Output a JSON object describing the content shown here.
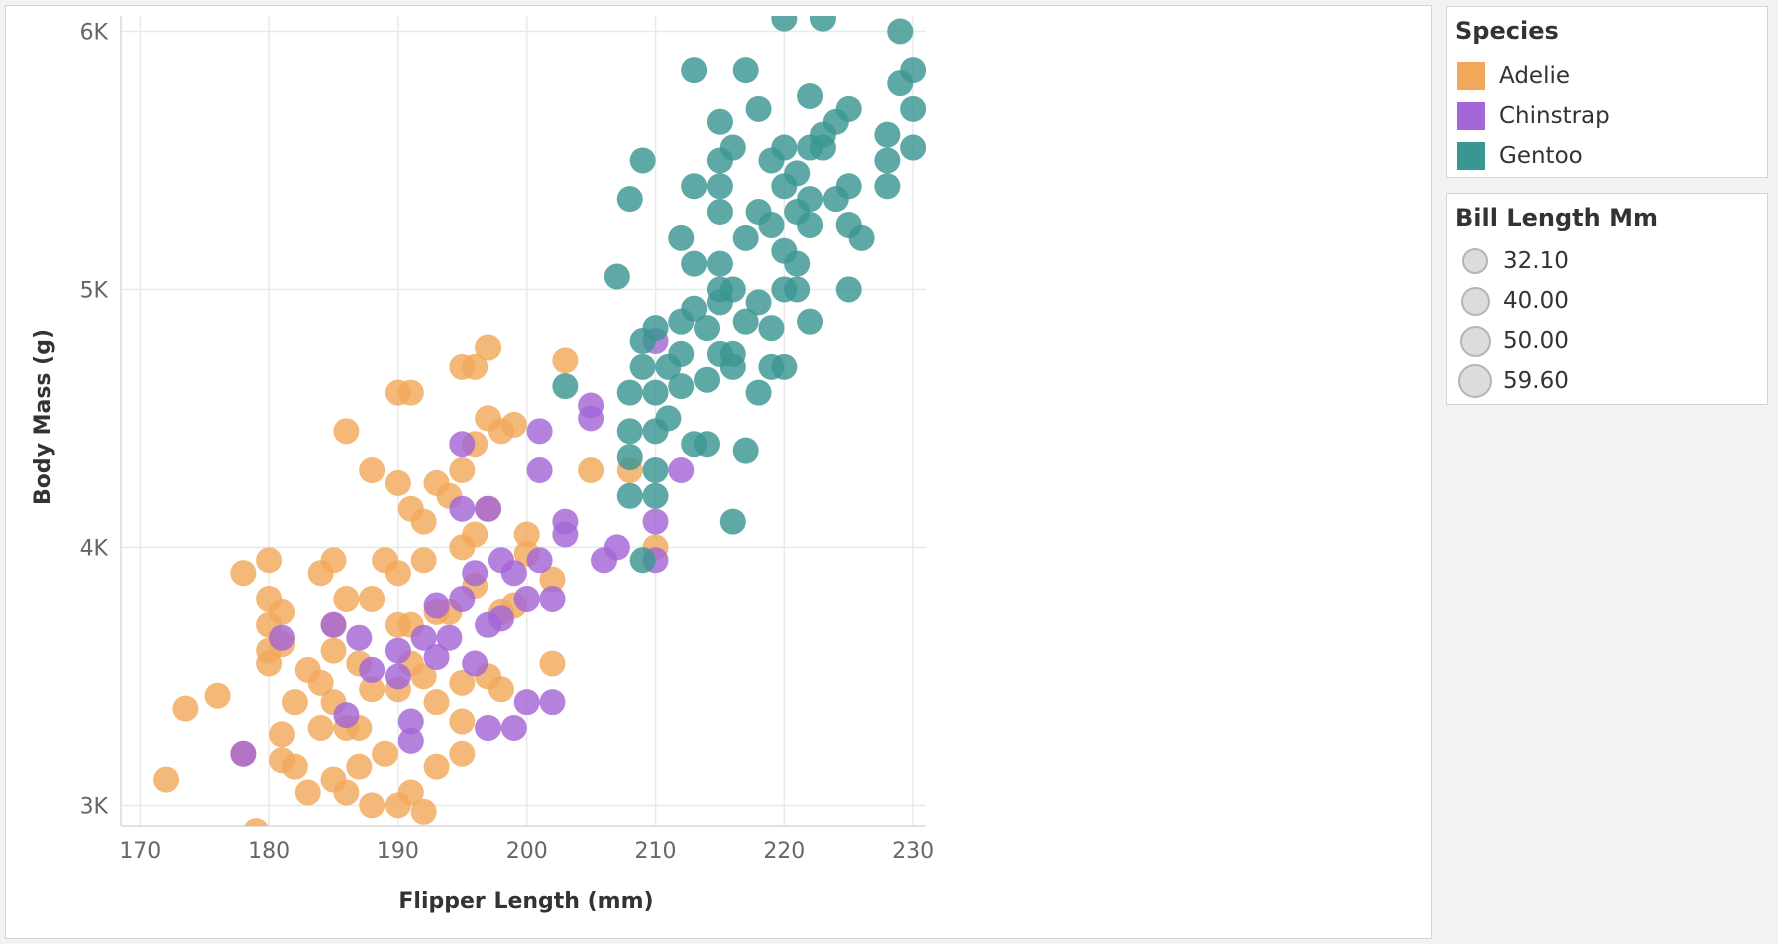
{
  "chart_data": {
    "type": "scatter",
    "xlabel": "Flipper Length (mm)",
    "ylabel": "Body Mass (g)",
    "xlim": [
      168.5,
      231
    ],
    "ylim": [
      2920,
      6060
    ],
    "x_ticks": [
      170,
      180,
      190,
      200,
      210,
      220,
      230
    ],
    "x_tick_labels": [
      "170",
      "180",
      "190",
      "200",
      "210",
      "220",
      "230"
    ],
    "y_ticks": [
      3000,
      4000,
      5000,
      6000
    ],
    "y_tick_labels": [
      "3K",
      "4K",
      "5K",
      "6K"
    ],
    "grid": true,
    "legend_placement": "right",
    "color_legend": {
      "title": "Species",
      "items": [
        {
          "label": "Adelie",
          "color": "#f2a85a"
        },
        {
          "label": "Chinstrap",
          "color": "#a366d6"
        },
        {
          "label": "Gentoo",
          "color": "#3a9691"
        }
      ]
    },
    "size_legend": {
      "title": "Bill Length Mm",
      "items": [
        {
          "label": "32.10",
          "value": 32.1
        },
        {
          "label": "40.00",
          "value": 40.0
        },
        {
          "label": "50.00",
          "value": 50.0
        },
        {
          "label": "59.60",
          "value": 59.6
        }
      ]
    },
    "series": [
      {
        "name": "Adelie",
        "points": [
          [
            172,
            3100
          ],
          [
            173.5,
            3375
          ],
          [
            176,
            3425
          ],
          [
            178,
            3200
          ],
          [
            178,
            3900
          ],
          [
            179,
            2900
          ],
          [
            180,
            3800
          ],
          [
            180,
            3700
          ],
          [
            180,
            3550
          ],
          [
            180,
            3950
          ],
          [
            180,
            3600
          ],
          [
            181,
            3750
          ],
          [
            181,
            3625
          ],
          [
            181,
            3175
          ],
          [
            181,
            3275
          ],
          [
            182,
            3150
          ],
          [
            182,
            3400
          ],
          [
            183,
            3050
          ],
          [
            183,
            3525
          ],
          [
            184,
            3900
          ],
          [
            184,
            3475
          ],
          [
            184,
            3300
          ],
          [
            185,
            3950
          ],
          [
            185,
            3700
          ],
          [
            185,
            3600
          ],
          [
            185,
            3400
          ],
          [
            185,
            3100
          ],
          [
            186,
            3050
          ],
          [
            186,
            3300
          ],
          [
            186,
            3800
          ],
          [
            186,
            4450
          ],
          [
            187,
            3550
          ],
          [
            187,
            3300
          ],
          [
            187,
            3150
          ],
          [
            188,
            3000
          ],
          [
            188,
            3450
          ],
          [
            188,
            3800
          ],
          [
            188,
            4300
          ],
          [
            189,
            3200
          ],
          [
            189,
            3950
          ],
          [
            190,
            3900
          ],
          [
            190,
            3700
          ],
          [
            190,
            3450
          ],
          [
            190,
            3000
          ],
          [
            190,
            4250
          ],
          [
            190,
            4600
          ],
          [
            191,
            4600
          ],
          [
            191,
            4150
          ],
          [
            191,
            3550
          ],
          [
            191,
            3050
          ],
          [
            191,
            3700
          ],
          [
            192,
            3950
          ],
          [
            192,
            3500
          ],
          [
            192,
            4100
          ],
          [
            192,
            2975
          ],
          [
            193,
            3750
          ],
          [
            193,
            3150
          ],
          [
            193,
            4250
          ],
          [
            193,
            3400
          ],
          [
            194,
            4200
          ],
          [
            194,
            3750
          ],
          [
            195,
            3325
          ],
          [
            195,
            3200
          ],
          [
            195,
            3475
          ],
          [
            195,
            4000
          ],
          [
            195,
            4300
          ],
          [
            195,
            4700
          ],
          [
            196,
            4400
          ],
          [
            196,
            4700
          ],
          [
            196,
            3850
          ],
          [
            196,
            4050
          ],
          [
            197,
            4500
          ],
          [
            197,
            3500
          ],
          [
            197,
            4775
          ],
          [
            197,
            4150
          ],
          [
            198,
            4450
          ],
          [
            198,
            3750
          ],
          [
            198,
            3450
          ],
          [
            199,
            4475
          ],
          [
            199,
            3775
          ],
          [
            200,
            3975
          ],
          [
            200,
            4050
          ],
          [
            202,
            3875
          ],
          [
            202,
            3550
          ],
          [
            203,
            4725
          ],
          [
            205,
            4300
          ],
          [
            208,
            4300
          ],
          [
            210,
            4000
          ]
        ]
      },
      {
        "name": "Chinstrap",
        "points": [
          [
            178,
            3200
          ],
          [
            181,
            3650
          ],
          [
            185,
            3700
          ],
          [
            186,
            3350
          ],
          [
            187,
            3650
          ],
          [
            188,
            3525
          ],
          [
            190,
            3500
          ],
          [
            190,
            3600
          ],
          [
            191,
            3325
          ],
          [
            191,
            3250
          ],
          [
            192,
            3650
          ],
          [
            193,
            3775
          ],
          [
            193,
            3575
          ],
          [
            194,
            3650
          ],
          [
            195,
            3800
          ],
          [
            195,
            4150
          ],
          [
            195,
            4400
          ],
          [
            196,
            3550
          ],
          [
            196,
            3900
          ],
          [
            197,
            3700
          ],
          [
            197,
            3300
          ],
          [
            197,
            4150
          ],
          [
            198,
            3725
          ],
          [
            198,
            3950
          ],
          [
            199,
            3300
          ],
          [
            199,
            3900
          ],
          [
            200,
            3400
          ],
          [
            200,
            3800
          ],
          [
            201,
            4450
          ],
          [
            201,
            4300
          ],
          [
            201,
            3950
          ],
          [
            202,
            3800
          ],
          [
            202,
            3400
          ],
          [
            203,
            4100
          ],
          [
            203,
            4050
          ],
          [
            205,
            4550
          ],
          [
            205,
            4500
          ],
          [
            206,
            3950
          ],
          [
            207,
            4000
          ],
          [
            210,
            4100
          ],
          [
            210,
            3950
          ],
          [
            210,
            4800
          ],
          [
            212,
            4300
          ]
        ]
      },
      {
        "name": "Gentoo",
        "points": [
          [
            203,
            4625
          ],
          [
            207,
            5050
          ],
          [
            208,
            4350
          ],
          [
            208,
            4200
          ],
          [
            208,
            4600
          ],
          [
            208,
            4450
          ],
          [
            208,
            5350
          ],
          [
            209,
            5500
          ],
          [
            209,
            4800
          ],
          [
            209,
            4700
          ],
          [
            209,
            3950
          ],
          [
            210,
            4450
          ],
          [
            210,
            4600
          ],
          [
            210,
            4850
          ],
          [
            210,
            4300
          ],
          [
            210,
            4200
          ],
          [
            211,
            4500
          ],
          [
            211,
            4700
          ],
          [
            212,
            4625
          ],
          [
            212,
            4750
          ],
          [
            212,
            4875
          ],
          [
            212,
            5200
          ],
          [
            213,
            4400
          ],
          [
            213,
            4925
          ],
          [
            213,
            5100
          ],
          [
            213,
            5400
          ],
          [
            213,
            5850
          ],
          [
            214,
            4650
          ],
          [
            214,
            4850
          ],
          [
            214,
            4400
          ],
          [
            215,
            4750
          ],
          [
            215,
            5000
          ],
          [
            215,
            5100
          ],
          [
            215,
            5300
          ],
          [
            215,
            5400
          ],
          [
            215,
            5500
          ],
          [
            215,
            5650
          ],
          [
            215,
            4950
          ],
          [
            216,
            4750
          ],
          [
            216,
            4700
          ],
          [
            216,
            5000
          ],
          [
            216,
            5550
          ],
          [
            216,
            4100
          ],
          [
            217,
            4875
          ],
          [
            217,
            5200
          ],
          [
            217,
            5850
          ],
          [
            217,
            4375
          ],
          [
            218,
            4600
          ],
          [
            218,
            4950
          ],
          [
            218,
            5300
          ],
          [
            218,
            5700
          ],
          [
            219,
            5500
          ],
          [
            219,
            5250
          ],
          [
            219,
            4850
          ],
          [
            219,
            4700
          ],
          [
            220,
            5150
          ],
          [
            220,
            5400
          ],
          [
            220,
            4700
          ],
          [
            220,
            5000
          ],
          [
            220,
            5550
          ],
          [
            220,
            6050
          ],
          [
            221,
            5100
          ],
          [
            221,
            5000
          ],
          [
            221,
            5300
          ],
          [
            221,
            5450
          ],
          [
            222,
            5250
          ],
          [
            222,
            4875
          ],
          [
            222,
            5750
          ],
          [
            222,
            5550
          ],
          [
            222,
            5350
          ],
          [
            223,
            5550
          ],
          [
            223,
            6050
          ],
          [
            223,
            5600
          ],
          [
            224,
            5350
          ],
          [
            224,
            5650
          ],
          [
            225,
            5700
          ],
          [
            225,
            5400
          ],
          [
            225,
            5250
          ],
          [
            225,
            5000
          ],
          [
            226,
            5200
          ],
          [
            228,
            5400
          ],
          [
            228,
            5500
          ],
          [
            228,
            5600
          ],
          [
            229,
            5800
          ],
          [
            229,
            6000
          ],
          [
            230,
            5850
          ],
          [
            230,
            5550
          ],
          [
            230,
            5700
          ]
        ]
      }
    ]
  }
}
